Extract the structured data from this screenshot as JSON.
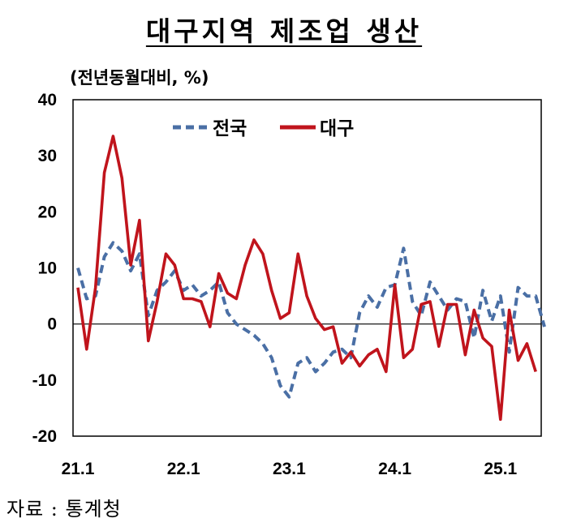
{
  "title": "대구지역 제조업 생산",
  "source": "자료 : 통계청",
  "chart_data": {
    "type": "line",
    "title": "대구지역 제조업 생산",
    "ylabel": "(전년동월대비, %)",
    "xlabel": "",
    "ylim": [
      -20,
      40
    ],
    "yticks": [
      40,
      30,
      20,
      10,
      0,
      -10,
      -20
    ],
    "x_tick_labels": [
      "21.1",
      "22.1",
      "23.1",
      "24.1",
      "25.1"
    ],
    "x_tick_index": [
      0,
      12,
      24,
      36,
      48
    ],
    "legend": {
      "placement": "top-center",
      "entries": [
        "전국",
        "대구"
      ]
    },
    "grid": false,
    "series": [
      {
        "name": "전국",
        "color": "#4a6fa5",
        "style": "dashed",
        "values": [
          10,
          4.5,
          5,
          12,
          14.5,
          13,
          9.5,
          12.5,
          1.5,
          6,
          7.5,
          9.5,
          6,
          7,
          5,
          6,
          7.5,
          2,
          0,
          -1,
          -2,
          -3.5,
          -6,
          -11,
          -13,
          -7,
          -6,
          -8.5,
          -7,
          -5,
          -4.5,
          -6,
          2,
          5,
          3,
          6.5,
          7,
          13.5,
          4,
          1.5,
          7.5,
          5,
          2.5,
          4.5,
          4,
          -2.5,
          6,
          0.5,
          5,
          -5,
          6.5,
          5,
          5,
          -0.5
        ]
      },
      {
        "name": "대구",
        "color": "#c0141c",
        "style": "solid",
        "values": [
          6.5,
          -4.5,
          6.5,
          27,
          33.5,
          26,
          10.5,
          18.5,
          -3,
          4,
          12.5,
          10.5,
          4.5,
          4.5,
          4,
          -0.5,
          9,
          5.5,
          4.5,
          10.5,
          15,
          12.5,
          6,
          1,
          2,
          12.5,
          5,
          1,
          -1,
          -0.5,
          -7,
          -5,
          -7.5,
          -5.5,
          -4.5,
          -8.5,
          7,
          -6,
          -4.5,
          3.5,
          4,
          -4,
          3.5,
          3.5,
          -5.5,
          2.5,
          -2.5,
          -4,
          -17,
          2.5,
          -6.5,
          -3.5,
          -8.5
        ]
      }
    ]
  }
}
